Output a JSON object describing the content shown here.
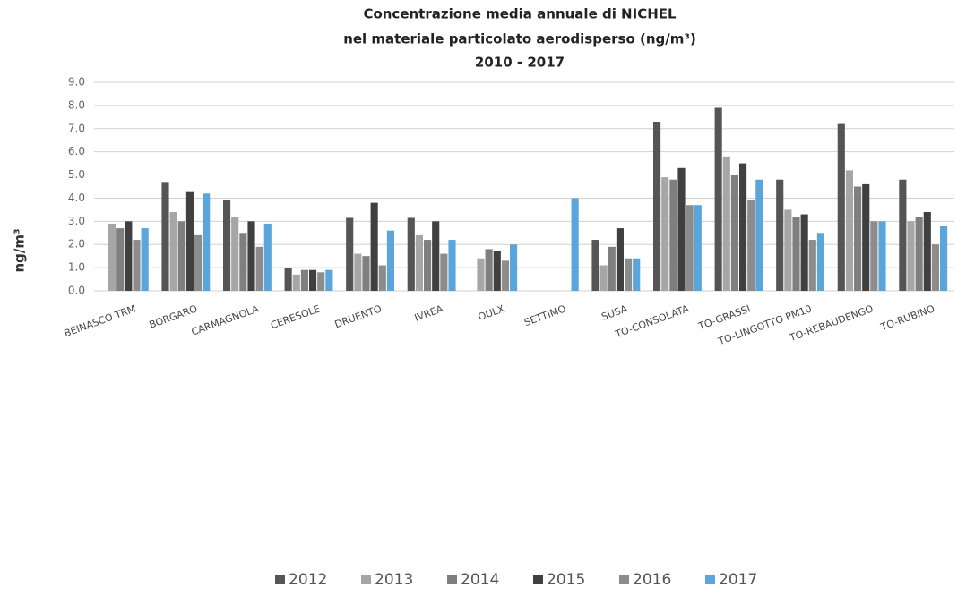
{
  "chart_data": {
    "type": "bar",
    "title": [
      "Concentrazione media annuale di NICHEL",
      "nel materiale particolato aerodisperso (ng/m³)",
      "2010 - 2017"
    ],
    "ylabel": "ng/m³",
    "categories": [
      "BEINASCO TRM",
      "BORGARO",
      "CARMAGNOLA",
      "CERESOLE",
      "DRUENTO",
      "IVREA",
      "OULX",
      "SETTIMO",
      "SUSA",
      "TO-CONSOLATA",
      "TO-GRASSI",
      "TO-LINGOTTO  PM10",
      "TO-REBAUDENGO",
      "TO-RUBINO"
    ],
    "series": [
      {
        "name": "2012",
        "color": "#555555",
        "values": [
          null,
          4.7,
          3.9,
          1.0,
          3.15,
          3.15,
          null,
          null,
          2.2,
          7.3,
          7.9,
          4.8,
          7.2,
          4.8
        ]
      },
      {
        "name": "2013",
        "color": "#a6a6a6",
        "values": [
          2.9,
          3.4,
          3.2,
          0.7,
          1.6,
          2.4,
          1.4,
          null,
          1.1,
          4.9,
          5.8,
          3.5,
          5.2,
          3.0
        ]
      },
      {
        "name": "2014",
        "color": "#7f7f7f",
        "values": [
          2.7,
          3.0,
          2.5,
          0.9,
          1.5,
          2.2,
          1.8,
          null,
          1.9,
          4.8,
          5.0,
          3.2,
          4.5,
          3.2
        ]
      },
      {
        "name": "2015",
        "color": "#404040",
        "values": [
          3.0,
          4.3,
          3.0,
          0.9,
          3.8,
          3.0,
          1.7,
          null,
          2.7,
          5.3,
          5.5,
          3.3,
          4.6,
          3.4
        ]
      },
      {
        "name": "2016",
        "color": "#8c8c8c",
        "values": [
          2.2,
          2.4,
          1.9,
          0.8,
          1.1,
          1.6,
          1.3,
          null,
          1.4,
          3.7,
          3.9,
          2.2,
          3.0,
          2.0
        ]
      },
      {
        "name": "2017",
        "color": "#5aa6dc",
        "values": [
          2.7,
          4.2,
          2.9,
          0.9,
          2.6,
          2.2,
          2.0,
          4.0,
          1.4,
          3.7,
          4.8,
          2.5,
          3.0,
          2.8
        ]
      }
    ],
    "ylim": [
      0,
      9
    ],
    "yticks": [
      {
        "value": 0,
        "label": "0.0"
      },
      {
        "value": 1,
        "label": "1.0"
      },
      {
        "value": 2,
        "label": "2.0"
      },
      {
        "value": 3,
        "label": "3.0"
      },
      {
        "value": 4,
        "label": "4.0"
      },
      {
        "value": 5,
        "label": "5.0"
      },
      {
        "value": 6,
        "label": "6.0"
      },
      {
        "value": 7,
        "label": "7.0"
      },
      {
        "value": 8,
        "label": "8.0"
      },
      {
        "value": 9,
        "label": "9.0"
      }
    ],
    "grid": true,
    "legend": "bottom"
  }
}
